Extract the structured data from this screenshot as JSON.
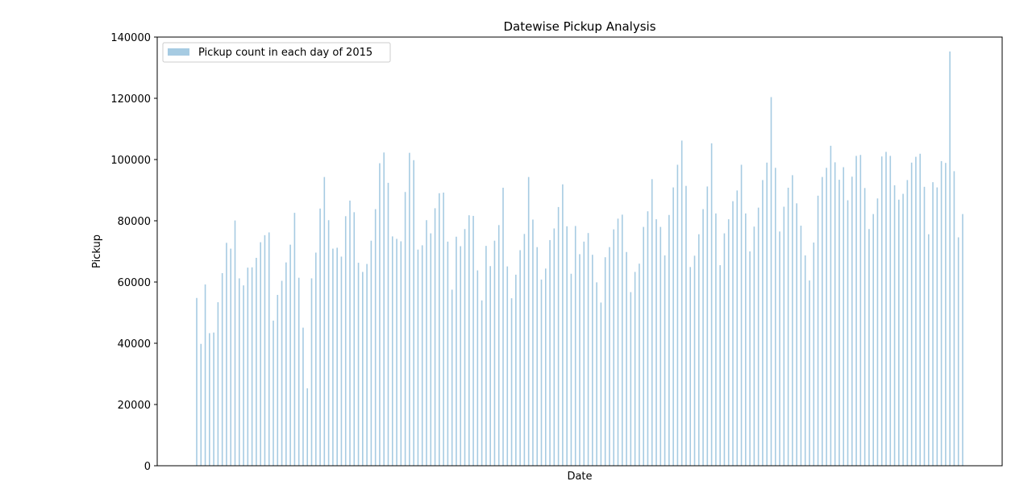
{
  "chart_data": {
    "type": "bar",
    "title": "Datewise Pickup Analysis",
    "xlabel": "Date",
    "ylabel": "Pickup",
    "ylim": [
      0,
      140000
    ],
    "yticks": [
      0,
      20000,
      40000,
      60000,
      80000,
      100000,
      120000,
      140000
    ],
    "yticklabels": [
      "0",
      "20000",
      "40000",
      "60000",
      "80000",
      "100000",
      "120000",
      "140000"
    ],
    "grid": false,
    "legend": {
      "placement": "top-left",
      "entries": [
        "Pickup count in each day of 2015"
      ]
    },
    "series": [
      {
        "name": "Pickup count in each day of 2015",
        "color": "#a6cbe2",
        "values": [
          54800,
          39800,
          59200,
          43300,
          43500,
          53400,
          62900,
          72800,
          70900,
          80100,
          61200,
          58900,
          64700,
          64800,
          67900,
          73000,
          75300,
          76200,
          47400,
          55800,
          60400,
          66400,
          72200,
          82600,
          61400,
          45100,
          25300,
          61200,
          69600,
          84000,
          94300,
          80200,
          70900,
          71200,
          68300,
          81500,
          86600,
          82800,
          66300,
          63300,
          65900,
          73500,
          83800,
          98800,
          102300,
          92400,
          74900,
          74100,
          73300,
          89400,
          102200,
          99800,
          70600,
          72000,
          80200,
          75900,
          84100,
          89000,
          89200,
          73200,
          57500,
          74800,
          71700,
          77300,
          81800,
          81600,
          63800,
          54000,
          71800,
          65200,
          73500,
          78600,
          90800,
          65100,
          54700,
          62400,
          70400,
          75700,
          94300,
          80400,
          71400,
          60800,
          64400,
          73700,
          77500,
          84500,
          91900,
          78200,
          62700,
          78300,
          69100,
          73200,
          76000,
          68900,
          59900,
          53300,
          68100,
          71400,
          77200,
          80700,
          82000,
          69800,
          56700,
          63300,
          66000,
          78000,
          83100,
          93600,
          80500,
          78000,
          68700,
          81900,
          90900,
          98300,
          106200,
          91400,
          64900,
          68600,
          75600,
          83800,
          91200,
          105300,
          82400,
          65500,
          75900,
          80500,
          86400,
          89900,
          98300,
          82400,
          70000,
          78100,
          84300,
          93300,
          99000,
          120400,
          97300,
          76500,
          84600,
          90800,
          94900,
          85700,
          78400,
          68700,
          60500,
          72900,
          88200,
          94300,
          97300,
          104500,
          99100,
          93400,
          97500,
          86700,
          94400,
          101200,
          101500,
          90700,
          77300,
          82200,
          87300,
          101000,
          102500,
          101200,
          91600,
          86900,
          88800,
          93300,
          99000,
          100900,
          101900,
          91100,
          75600,
          92600,
          90900,
          99500,
          98900,
          135300,
          96200,
          74600,
          82200
        ]
      }
    ]
  }
}
